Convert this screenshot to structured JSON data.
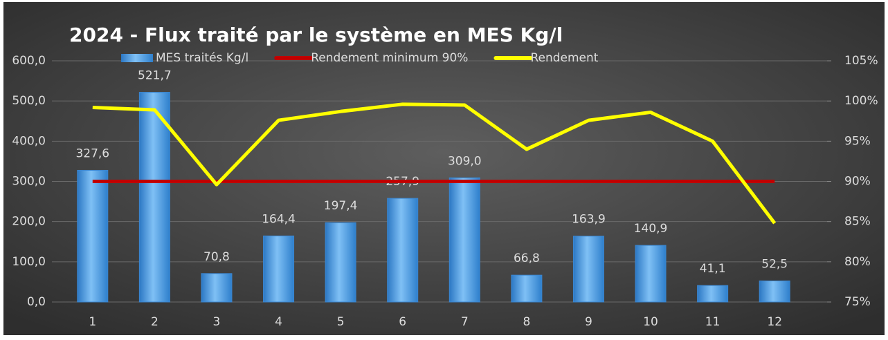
{
  "chart_data": {
    "type": "bar",
    "title": "2024 - Flux traité par le système en MES Kg/l",
    "categories": [
      "1",
      "2",
      "3",
      "4",
      "5",
      "6",
      "7",
      "8",
      "9",
      "10",
      "11",
      "12"
    ],
    "series": [
      {
        "name": "MES traités Kg/l",
        "type": "bar",
        "color": "#4a9de0",
        "values": [
          327.6,
          521.7,
          70.8,
          164.4,
          197.4,
          257.9,
          309.0,
          66.8,
          163.9,
          140.9,
          41.1,
          52.5
        ],
        "value_labels": [
          "327,6",
          "521,7",
          "70,8",
          "164,4",
          "197,4",
          "257,9",
          "309,0",
          "66,8",
          "163,9",
          "140,9",
          "41,1",
          "52,5"
        ]
      },
      {
        "name": "Rendement minimum 90%",
        "type": "line",
        "axis": "y2",
        "color": "#c00000",
        "values": [
          90,
          90,
          90,
          90,
          90,
          90,
          90,
          90,
          90,
          90,
          90,
          90
        ]
      },
      {
        "name": "Rendement",
        "type": "line",
        "axis": "y2",
        "color": "#ffff00",
        "values": [
          99.2,
          98.9,
          89.6,
          97.6,
          98.7,
          99.6,
          99.5,
          94.0,
          97.6,
          98.6,
          95.0,
          84.8
        ]
      }
    ],
    "ylim": [
      0,
      600
    ],
    "yticks": [
      {
        "value": 0,
        "label": "0,0"
      },
      {
        "value": 100,
        "label": "100,0"
      },
      {
        "value": 200,
        "label": "200,0"
      },
      {
        "value": 300,
        "label": "300,0"
      },
      {
        "value": 400,
        "label": "400,0"
      },
      {
        "value": 500,
        "label": "500,0"
      },
      {
        "value": 600,
        "label": "600,0"
      }
    ],
    "y2lim": [
      75,
      105
    ],
    "y2ticks": [
      {
        "value": 75,
        "label": "75%"
      },
      {
        "value": 80,
        "label": "80%"
      },
      {
        "value": 85,
        "label": "85%"
      },
      {
        "value": 90,
        "label": "90%"
      },
      {
        "value": 95,
        "label": "95%"
      },
      {
        "value": 100,
        "label": "100%"
      },
      {
        "value": 105,
        "label": "105%"
      }
    ],
    "grid": true,
    "legend": "top"
  }
}
